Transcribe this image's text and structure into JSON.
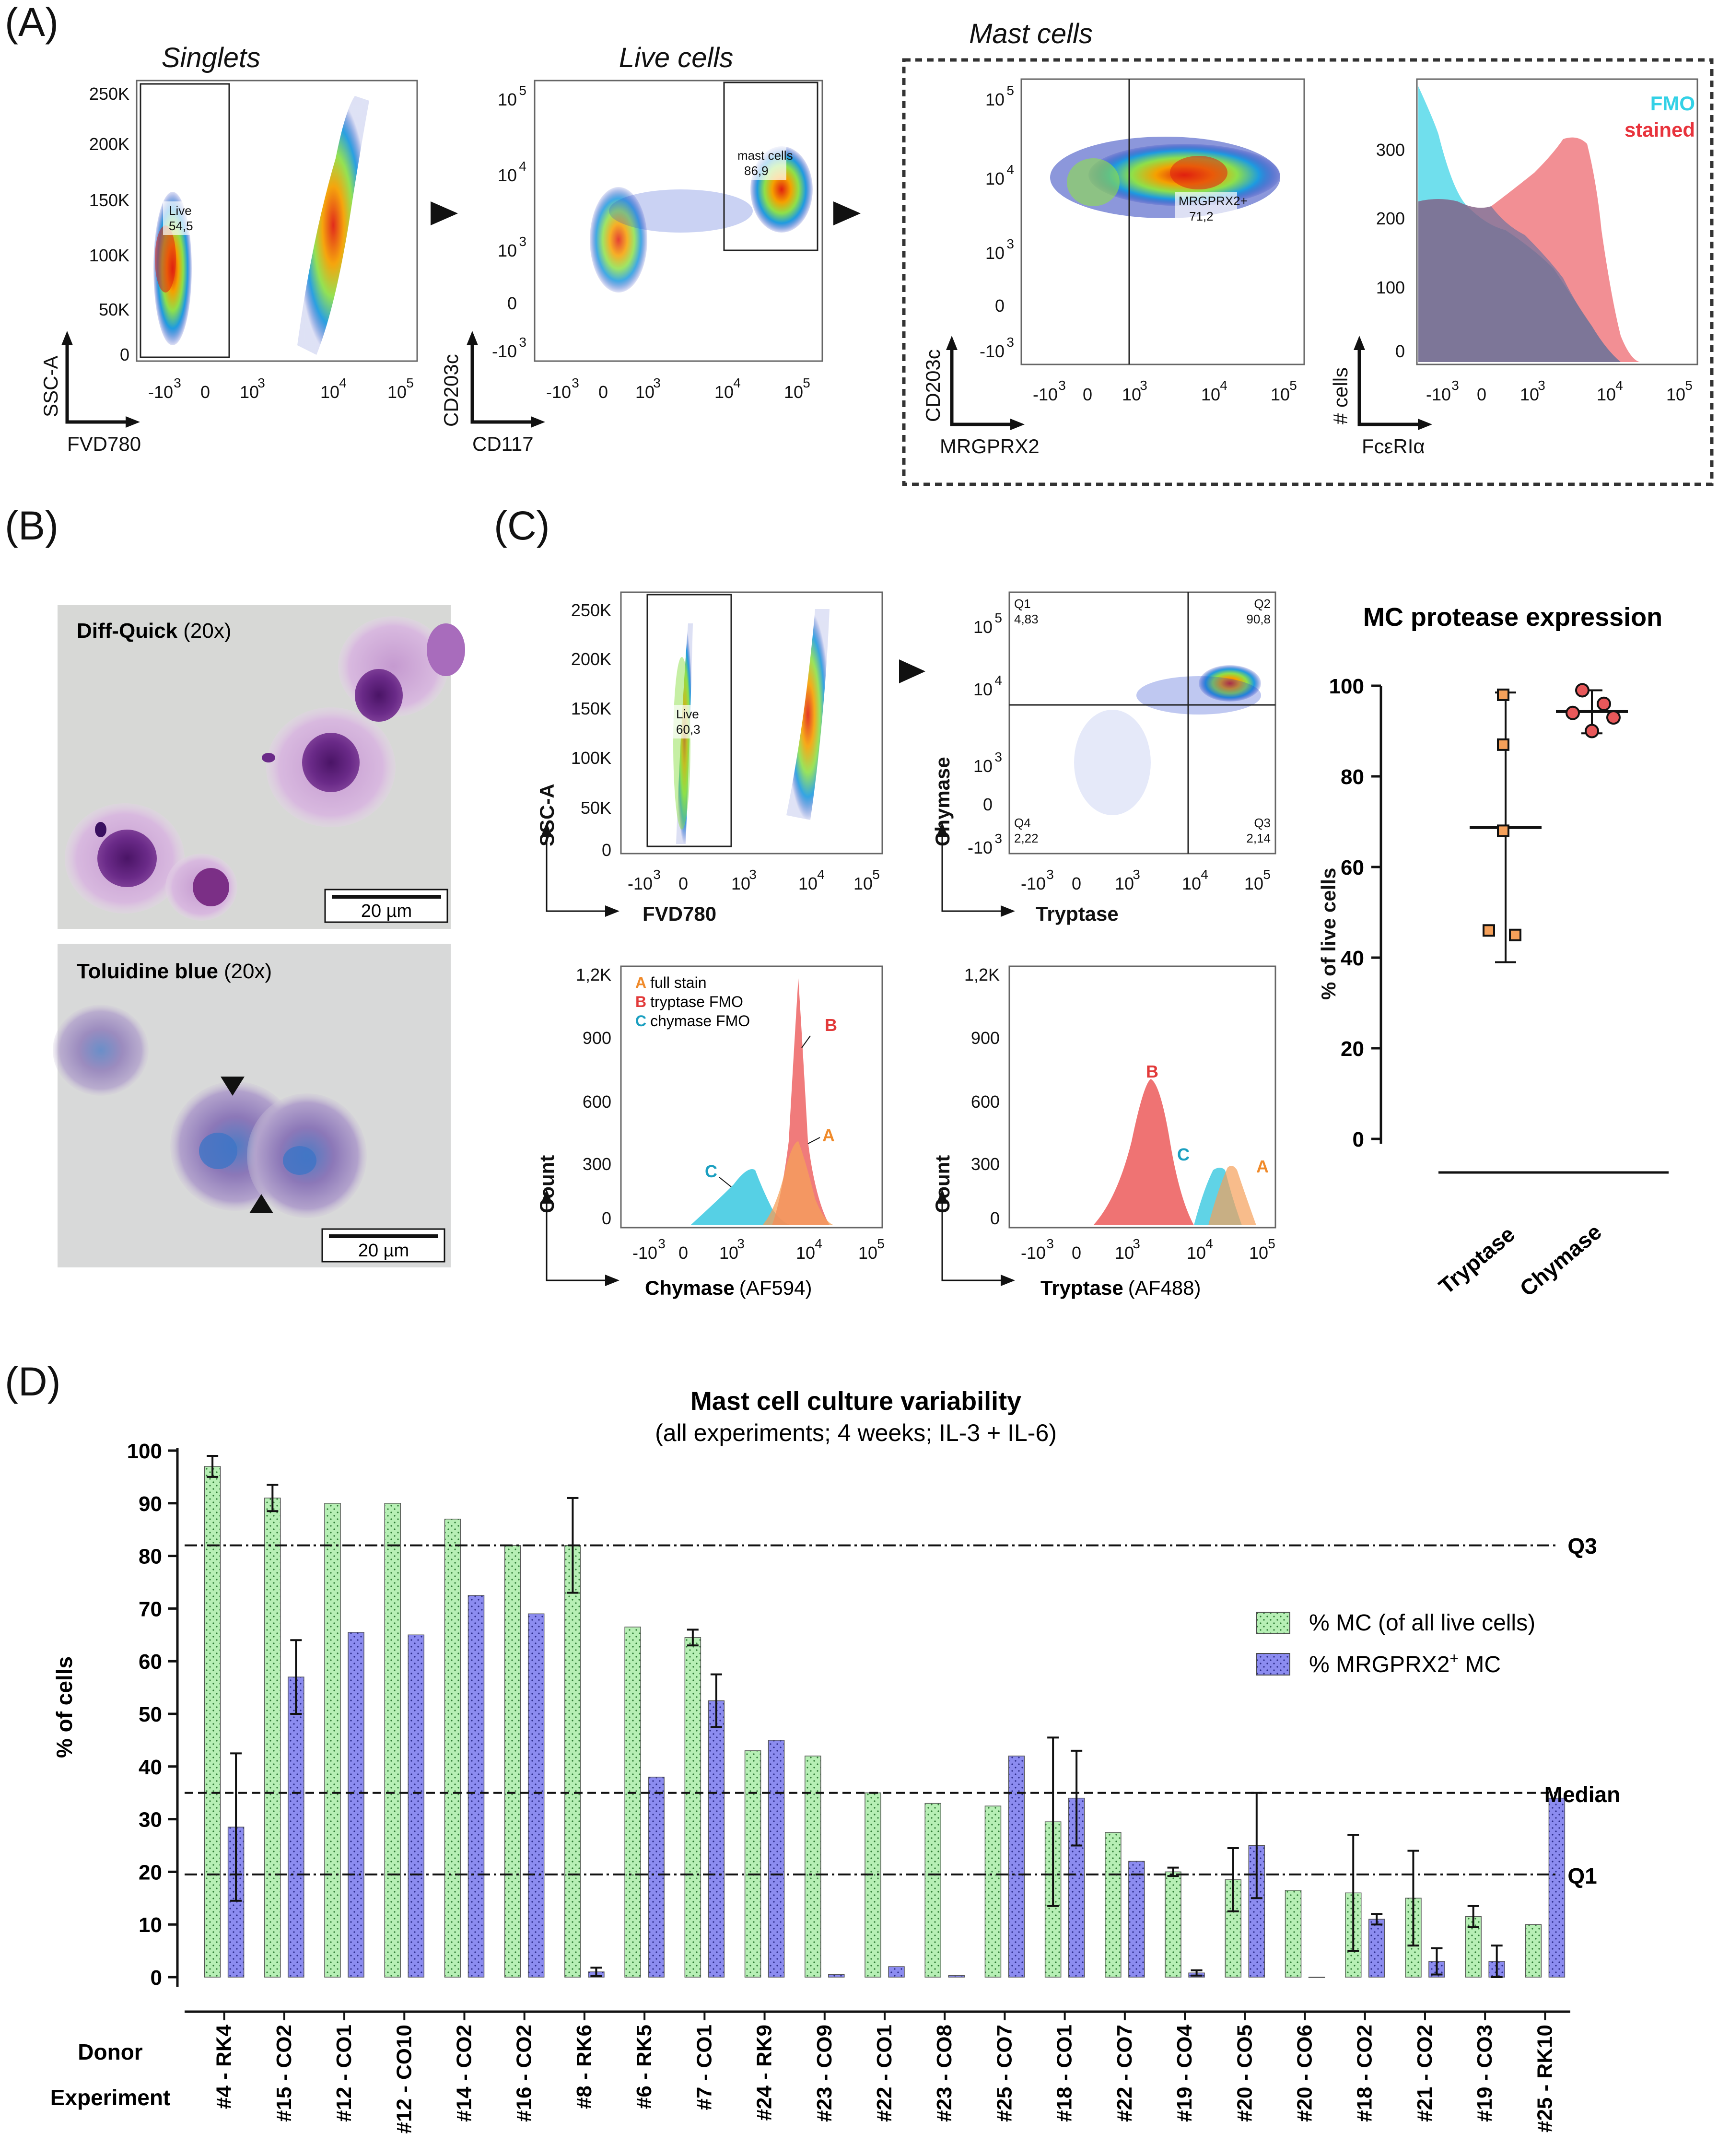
{
  "panels": {
    "A": {
      "letter": "(A)",
      "titles": {
        "singlets": "Singlets",
        "live": "Live cells",
        "mast": "Mast cells"
      },
      "plot1": {
        "x_label": "FVD780",
        "y_label": "SSC-A",
        "y_ticks": [
          "250K",
          "200K",
          "150K",
          "100K",
          "50K",
          "0"
        ],
        "x_ticks": [
          "-10",
          "3",
          "0",
          "10",
          "3",
          "10",
          "4",
          "10",
          "5"
        ],
        "gate": "Live",
        "gate_value": "54,5"
      },
      "plot2": {
        "x_label": "CD117",
        "y_label": "CD203c",
        "gate": "mast cells",
        "gate_value": "86,9"
      },
      "plot3": {
        "x_label": "MRGPRX2",
        "y_label": "CD203c",
        "gate": "MRGPRX2+",
        "gate_value": "71,2"
      },
      "plot4": {
        "x_label": "FcεRIα",
        "y_label": "# cells",
        "y_ticks": [
          "300",
          "200",
          "100",
          "0"
        ],
        "legend": [
          {
            "label": "FMO",
            "color": "#33d1e6"
          },
          {
            "label": "stained",
            "color": "#e8333c"
          }
        ]
      }
    },
    "B": {
      "letter": "(B)",
      "img1": {
        "stain": "Diff-Quick",
        "mag": "(20x)",
        "scale": "20 µm"
      },
      "img2": {
        "stain": "Toluidine blue",
        "mag": "(20x)",
        "scale": "20 µm"
      }
    },
    "C": {
      "letter": "(C)",
      "plot1": {
        "x_label": "FVD780",
        "y_label": "SSC-A",
        "gate": "Live",
        "gate_value": "60,3"
      },
      "plot2": {
        "x_label": "Tryptase",
        "y_label": "Chymase",
        "quadrants": [
          {
            "q": "Q1",
            "v": "4,83"
          },
          {
            "q": "Q2",
            "v": "90,8"
          },
          {
            "q": "Q3",
            "v": "2,14"
          },
          {
            "q": "Q4",
            "v": "2,22"
          }
        ]
      },
      "hist_legend": [
        {
          "key": "A",
          "text": "full stain",
          "color": "#f08a2a"
        },
        {
          "key": "B",
          "text": "tryptase FMO",
          "color": "#e23a3a"
        },
        {
          "key": "C",
          "text": "chymase FMO",
          "color": "#1a9fc0"
        }
      ],
      "hist1": {
        "x_label": "Chymase",
        "x_suffix": "(AF594)",
        "y_label": "Count",
        "y_ticks": [
          "1,2K",
          "900",
          "600",
          "300",
          "0"
        ]
      },
      "hist2": {
        "x_label": "Tryptase",
        "x_suffix": "(AF488)",
        "y_label": "Count",
        "y_ticks": [
          "1,2K",
          "900",
          "600",
          "300",
          "0"
        ]
      },
      "protease": {
        "title": "MC protease expression",
        "y_label": "% of live cells",
        "y_ticks": [
          "100",
          "80",
          "60",
          "40",
          "20",
          "0"
        ],
        "groups": [
          {
            "name": "Tryptase",
            "points": [
              98,
              87,
              68,
              46,
              45
            ],
            "mean": 68.7,
            "sd_low": 39,
            "sd_high": 98.5,
            "color": "#f5a05a"
          },
          {
            "name": "Chymase",
            "points": [
              99,
              96,
              94,
              93,
              90
            ],
            "mean": 94.3,
            "sd_low": 89.5,
            "sd_high": 99,
            "color": "#e8585a"
          }
        ]
      }
    },
    "D": {
      "letter": "(D)",
      "row_labels": {
        "donor": "Donor",
        "experiment": "Experiment"
      },
      "legend": {
        "mc": "% MC (of all live cells)",
        "mrgprx2_pre": "% MRGPRX2",
        "mrgprx2_sup": "+",
        "mrgprx2_post": " MC"
      },
      "ref_labels": {
        "q3": "Q3",
        "median": "Median",
        "q1": "Q1"
      }
    }
  },
  "chart_data": {
    "type": "bar",
    "title": "Mast cell culture variability",
    "subtitle": "(all experiments; 4 weeks; IL-3 + IL-6)",
    "xlabel": "",
    "ylabel": "% of cells",
    "ylim": [
      0,
      100
    ],
    "y_ticks": [
      0,
      10,
      20,
      30,
      40,
      50,
      60,
      70,
      80,
      90,
      100
    ],
    "reference_lines": {
      "Q3": 82,
      "Median": 35,
      "Q1": 19.5
    },
    "categories": [
      "#4 - RK4",
      "#15 - CO2",
      "#12 - CO1",
      "#12 - CO10",
      "#14 - CO2",
      "#16 - CO2",
      "#8 - RK6",
      "#6 - RK5",
      "#7 - CO1",
      "#24 - RK9",
      "#23 - CO9",
      "#22 - CO1",
      "#23 - CO8",
      "#25 - CO7",
      "#18 - CO1",
      "#22 - CO7",
      "#19 - CO4",
      "#20 - CO5",
      "#20 - CO6",
      "#18 - CO2",
      "#21 - CO2",
      "#19 - CO3",
      "#25 - RK10"
    ],
    "series": [
      {
        "name": "% MC (of all live cells)",
        "color": "#b7efb5",
        "values": [
          97,
          91,
          90,
          90,
          87,
          82,
          82,
          66.5,
          64.5,
          43,
          42,
          35,
          33,
          32.5,
          29.5,
          27.5,
          20,
          18.5,
          16.5,
          16,
          15,
          11.5,
          10
        ],
        "errors": [
          2,
          2.5,
          0,
          0,
          0,
          0,
          9,
          0,
          1.5,
          0,
          0,
          0,
          0,
          0,
          16,
          0,
          0.8,
          6,
          0,
          11,
          9,
          2,
          0
        ]
      },
      {
        "name": "% MRGPRX2+ MC",
        "color": "#8c8cf0",
        "values": [
          28.5,
          57,
          65.5,
          65,
          72.5,
          69,
          1,
          38,
          52.5,
          45,
          0.5,
          2,
          0.3,
          42,
          34,
          22,
          0.8,
          25,
          0,
          11,
          3,
          3,
          34
        ],
        "errors": [
          14,
          7,
          0,
          0,
          0,
          0,
          0.8,
          0,
          5,
          0,
          0,
          0,
          0,
          0,
          9,
          0,
          0.5,
          10,
          0,
          1,
          2.5,
          3,
          0
        ]
      }
    ]
  }
}
